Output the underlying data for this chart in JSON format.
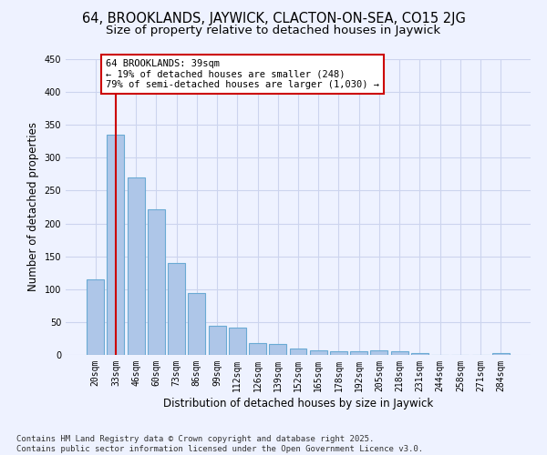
{
  "title1": "64, BROOKLANDS, JAYWICK, CLACTON-ON-SEA, CO15 2JG",
  "title2": "Size of property relative to detached houses in Jaywick",
  "xlabel": "Distribution of detached houses by size in Jaywick",
  "ylabel": "Number of detached properties",
  "categories": [
    "20sqm",
    "33sqm",
    "46sqm",
    "60sqm",
    "73sqm",
    "86sqm",
    "99sqm",
    "112sqm",
    "126sqm",
    "139sqm",
    "152sqm",
    "165sqm",
    "178sqm",
    "192sqm",
    "205sqm",
    "218sqm",
    "231sqm",
    "244sqm",
    "258sqm",
    "271sqm",
    "284sqm"
  ],
  "values": [
    115,
    335,
    270,
    222,
    140,
    94,
    45,
    42,
    18,
    17,
    10,
    7,
    6,
    6,
    7,
    5,
    3,
    0,
    0,
    0,
    3
  ],
  "bar_color": "#aec6e8",
  "bar_edge_color": "#6aaad4",
  "vline_x": 1.0,
  "vline_color": "#cc0000",
  "annotation_text": "64 BROOKLANDS: 39sqm\n← 19% of detached houses are smaller (248)\n79% of semi-detached houses are larger (1,030) →",
  "annotation_box_color": "#ffffff",
  "annotation_box_edge_color": "#cc0000",
  "ylim": [
    0,
    450
  ],
  "yticks": [
    0,
    50,
    100,
    150,
    200,
    250,
    300,
    350,
    400,
    450
  ],
  "background_color": "#eef2ff",
  "grid_color": "#ccd4ee",
  "footer": "Contains HM Land Registry data © Crown copyright and database right 2025.\nContains public sector information licensed under the Open Government Licence v3.0.",
  "title1_fontsize": 10.5,
  "title2_fontsize": 9.5,
  "xlabel_fontsize": 8.5,
  "ylabel_fontsize": 8.5,
  "tick_fontsize": 7,
  "annotation_fontsize": 7.5,
  "footer_fontsize": 6.5
}
